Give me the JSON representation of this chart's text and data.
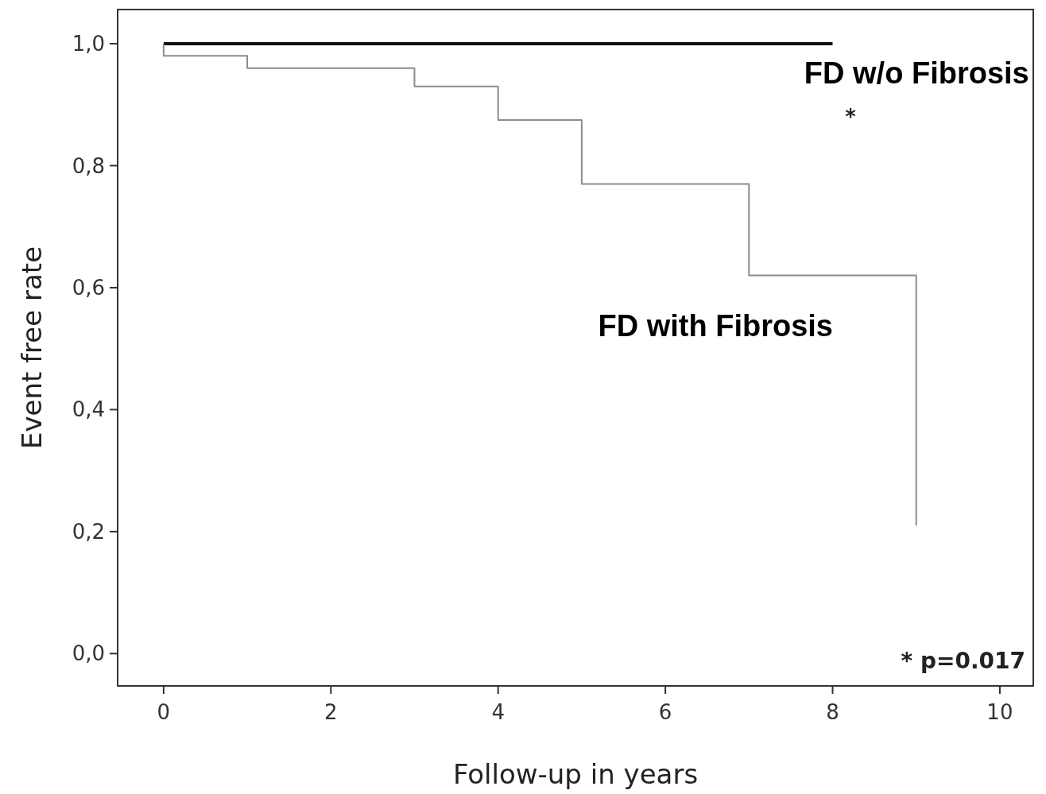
{
  "chart_data": {
    "type": "step",
    "xlabel": "Follow-up in years",
    "ylabel": "Event free rate",
    "xlim": [
      -0.55,
      10.4
    ],
    "ylim": [
      -0.053,
      1.056
    ],
    "xticks": [
      0,
      2,
      4,
      6,
      8,
      10
    ],
    "yticks": [
      {
        "value": 0,
        "label": "0,0"
      },
      {
        "value": 0.2,
        "label": "0,2"
      },
      {
        "value": 0.4,
        "label": "0,4"
      },
      {
        "value": 0.6,
        "label": "0,6"
      },
      {
        "value": 0.8,
        "label": "0,8"
      },
      {
        "value": 1,
        "label": "1,0"
      }
    ],
    "grid": false,
    "series": [
      {
        "name": "FD w/o Fibrosis",
        "color": "#111111",
        "x": [
          0,
          8
        ],
        "values": [
          1,
          1
        ]
      },
      {
        "name": "FD with Fibrosis",
        "color": "#8c8c8c",
        "x": [
          0,
          0,
          1,
          3,
          4,
          5,
          7,
          9
        ],
        "values": [
          1,
          0.98,
          0.96,
          0.93,
          0.875,
          0.77,
          0.62,
          0.21
        ]
      }
    ],
    "annotations": [
      "*",
      "* p=0.017"
    ]
  }
}
